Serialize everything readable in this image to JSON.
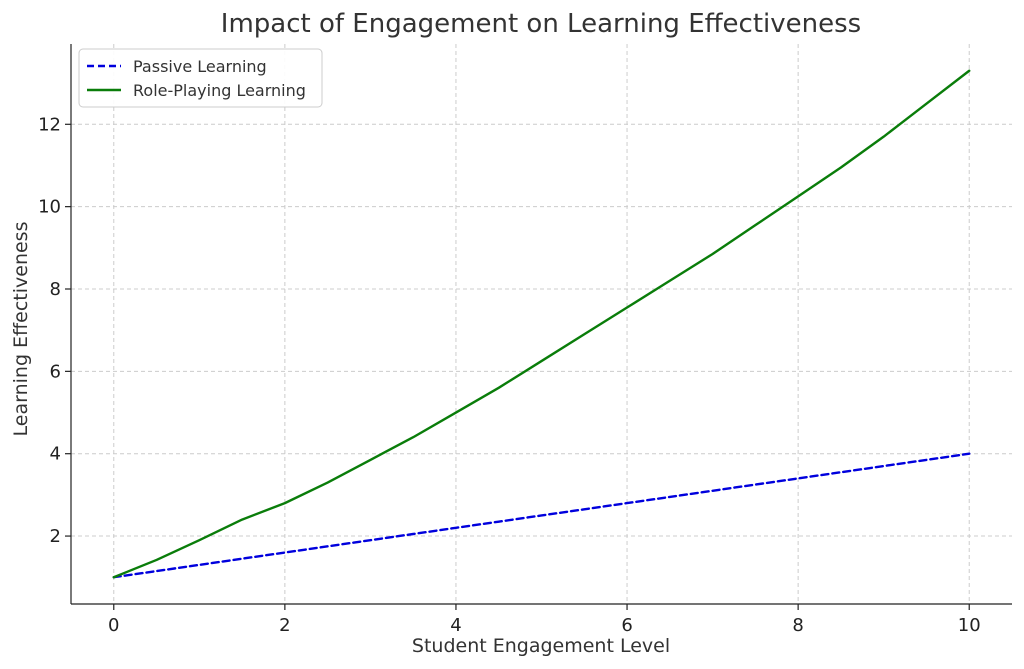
{
  "chart_data": {
    "type": "line",
    "title": "Impact of Engagement on Learning Effectiveness",
    "xlabel": "Student Engagement Level",
    "ylabel": "Learning Effectiveness",
    "xlim": [
      -0.5,
      10.5
    ],
    "ylim": [
      0.35,
      13.95
    ],
    "x_ticks": [
      0,
      2,
      4,
      6,
      8,
      10
    ],
    "y_ticks": [
      2,
      4,
      6,
      8,
      10,
      12
    ],
    "grid": true,
    "legend_position": "top-left",
    "x": [
      0,
      0.5,
      1,
      1.5,
      2,
      2.5,
      3,
      3.5,
      4,
      4.5,
      5,
      5.5,
      6,
      6.5,
      7,
      7.5,
      8,
      8.5,
      9,
      9.5,
      10
    ],
    "series": [
      {
        "name": "Passive Learning",
        "color": "#0000dd",
        "style": "dashed",
        "values": [
          1.0,
          1.15,
          1.3,
          1.45,
          1.6,
          1.75,
          1.9,
          2.05,
          2.2,
          2.35,
          2.5,
          2.65,
          2.8,
          2.95,
          3.1,
          3.25,
          3.4,
          3.55,
          3.7,
          3.85,
          4.0
        ]
      },
      {
        "name": "Role-Playing Learning",
        "color": "#0a7d0a",
        "style": "solid",
        "values": [
          1.0,
          1.42,
          1.9,
          2.4,
          2.8,
          3.3,
          3.85,
          4.4,
          5.0,
          5.6,
          6.25,
          6.9,
          7.55,
          8.2,
          8.85,
          9.55,
          10.25,
          10.95,
          11.7,
          12.5,
          13.3
        ]
      }
    ]
  }
}
